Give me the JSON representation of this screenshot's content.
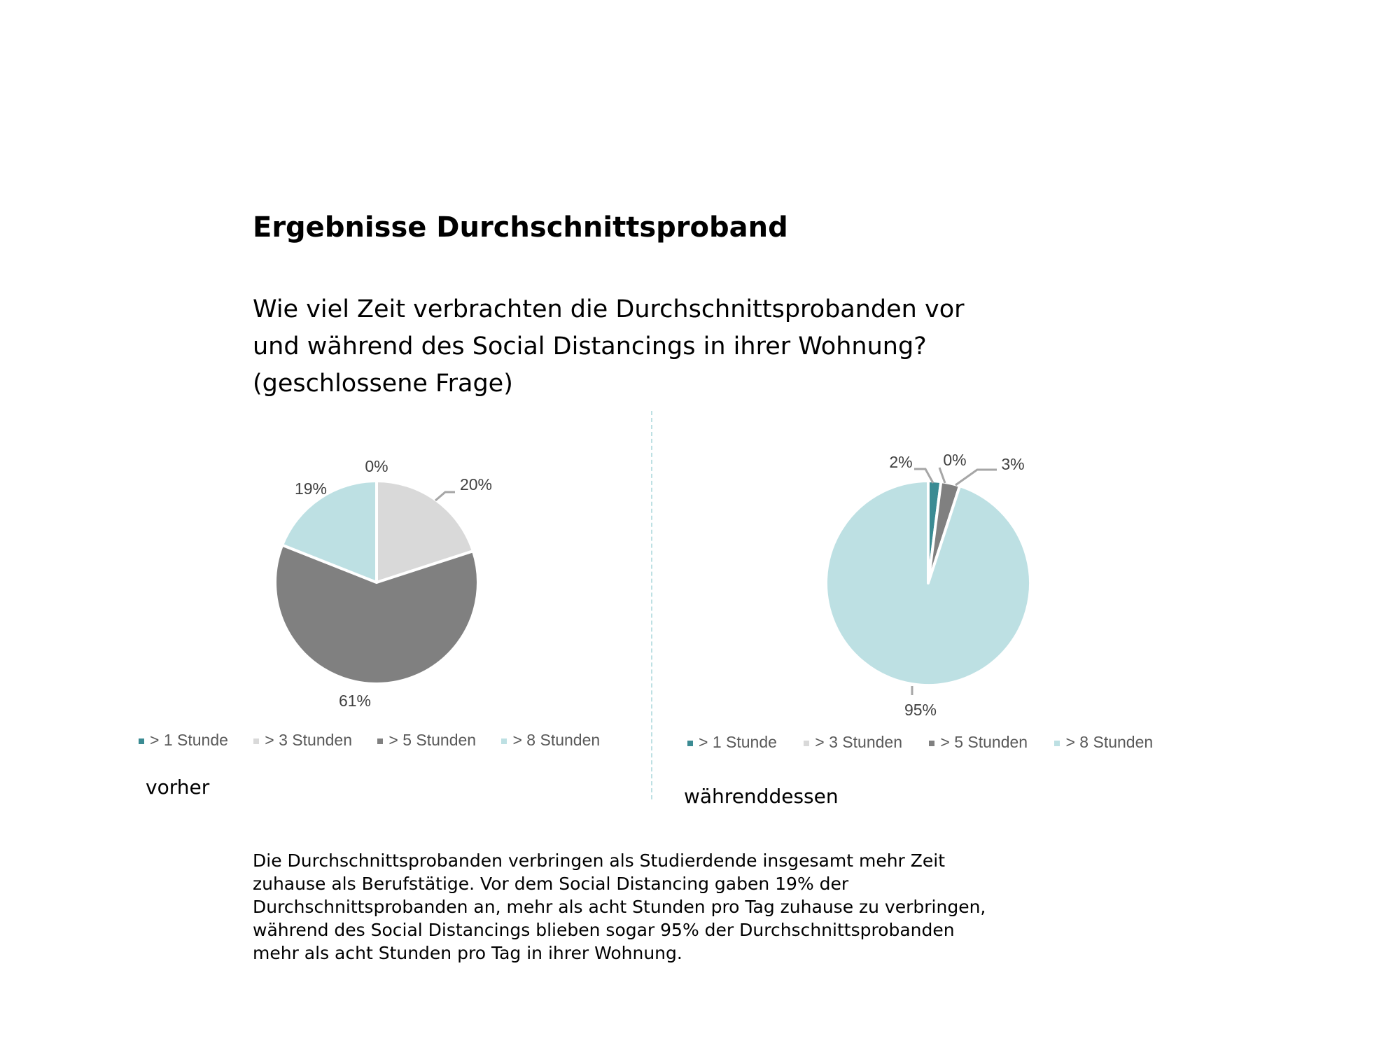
{
  "header": {
    "title": "Ergebnisse Durchschnittsproband",
    "question_lines": [
      "Wie viel Zeit verbrachten die Durchschnittsprobanden vor",
      "und während des Social Distancings in ihrer Wohnung?",
      "(geschlossene Frage)"
    ]
  },
  "chart_data": [
    {
      "type": "pie",
      "title": "vorher",
      "categories": [
        "> 1 Stunde",
        "> 3 Stunden",
        "> 5 Stunden",
        "> 8 Stunden"
      ],
      "values": [
        0,
        20,
        61,
        19
      ],
      "labels": [
        "0%",
        "20%",
        "61%",
        "19%"
      ],
      "colors": [
        "#3b8b93",
        "#d9d9d9",
        "#808080",
        "#bde0e3"
      ],
      "legend": "bottom"
    },
    {
      "type": "pie",
      "title": "währenddessen",
      "categories": [
        "> 1 Stunde",
        "> 3 Stunden",
        "> 5 Stunden",
        "> 8 Stunden"
      ],
      "values": [
        2,
        0,
        3,
        95
      ],
      "labels": [
        "2%",
        "0%",
        "3%",
        "95%"
      ],
      "colors": [
        "#3b8b93",
        "#d9d9d9",
        "#808080",
        "#bde0e3"
      ],
      "legend": "bottom"
    }
  ],
  "body_lines": [
    "Die Durchschnittsprobanden verbringen als Studierdende insgesamt mehr Zeit",
    "zuhause als Berufstätige. Vor dem Social Distancing gaben 19% der",
    "Durchschnittsprobanden an, mehr als acht Stunden pro Tag zuhause zu verbringen,",
    "während des Social Distancings blieben sogar 95%  der Durchschnittsprobanden",
    "mehr als acht Stunden pro Tag in ihrer Wohnung."
  ]
}
